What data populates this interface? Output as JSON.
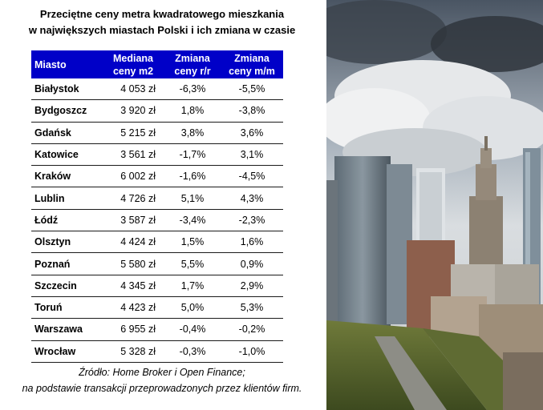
{
  "title": {
    "line1": "Przeciętne ceny metra kwadratowego mieszkania",
    "line2": "w największych miastach Polski i ich zmiana w czasie"
  },
  "table": {
    "headers": {
      "city": "Miasto",
      "median_l1": "Mediana",
      "median_l2": "ceny m2",
      "yoy_l1": "Zmiana",
      "yoy_l2": "ceny r/r",
      "mom_l1": "Zmiana",
      "mom_l2": "ceny m/m"
    },
    "rows": [
      {
        "city": "Białystok",
        "median": "4 053 zł",
        "yoy": "-6,3%",
        "mom": "-5,5%"
      },
      {
        "city": "Bydgoszcz",
        "median": "3 920 zł",
        "yoy": "1,8%",
        "mom": "-3,8%"
      },
      {
        "city": "Gdańsk",
        "median": "5 215 zł",
        "yoy": "3,8%",
        "mom": "3,6%"
      },
      {
        "city": "Katowice",
        "median": "3 561 zł",
        "yoy": "-1,7%",
        "mom": "3,1%"
      },
      {
        "city": "Kraków",
        "median": "6 002 zł",
        "yoy": "-1,6%",
        "mom": "-4,5%"
      },
      {
        "city": "Lublin",
        "median": "4 726 zł",
        "yoy": "5,1%",
        "mom": "4,3%"
      },
      {
        "city": "Łódź",
        "median": "3 587 zł",
        "yoy": "-3,4%",
        "mom": "-2,3%"
      },
      {
        "city": "Olsztyn",
        "median": "4 424 zł",
        "yoy": "1,5%",
        "mom": "1,6%"
      },
      {
        "city": "Poznań",
        "median": "5 580 zł",
        "yoy": "5,5%",
        "mom": "0,9%"
      },
      {
        "city": "Szczecin",
        "median": "4 345 zł",
        "yoy": "1,7%",
        "mom": "2,9%"
      },
      {
        "city": "Toruń",
        "median": "4 423 zł",
        "yoy": "5,0%",
        "mom": "5,3%"
      },
      {
        "city": "Warszawa",
        "median": "6 955 zł",
        "yoy": "-0,4%",
        "mom": "-0,2%"
      },
      {
        "city": "Wrocław",
        "median": "5 328 zł",
        "yoy": "-0,3%",
        "mom": "-1,0%"
      }
    ]
  },
  "source": {
    "line1": "Źródło: Home Broker i Open Finance;",
    "line2": "na podstawie transakcji przeprowadzonych przez klientów firm."
  },
  "colors": {
    "header_bg": "#0000c8",
    "header_text": "#ffffff"
  },
  "photo": {
    "icon": "warsaw-skyline-photo"
  }
}
